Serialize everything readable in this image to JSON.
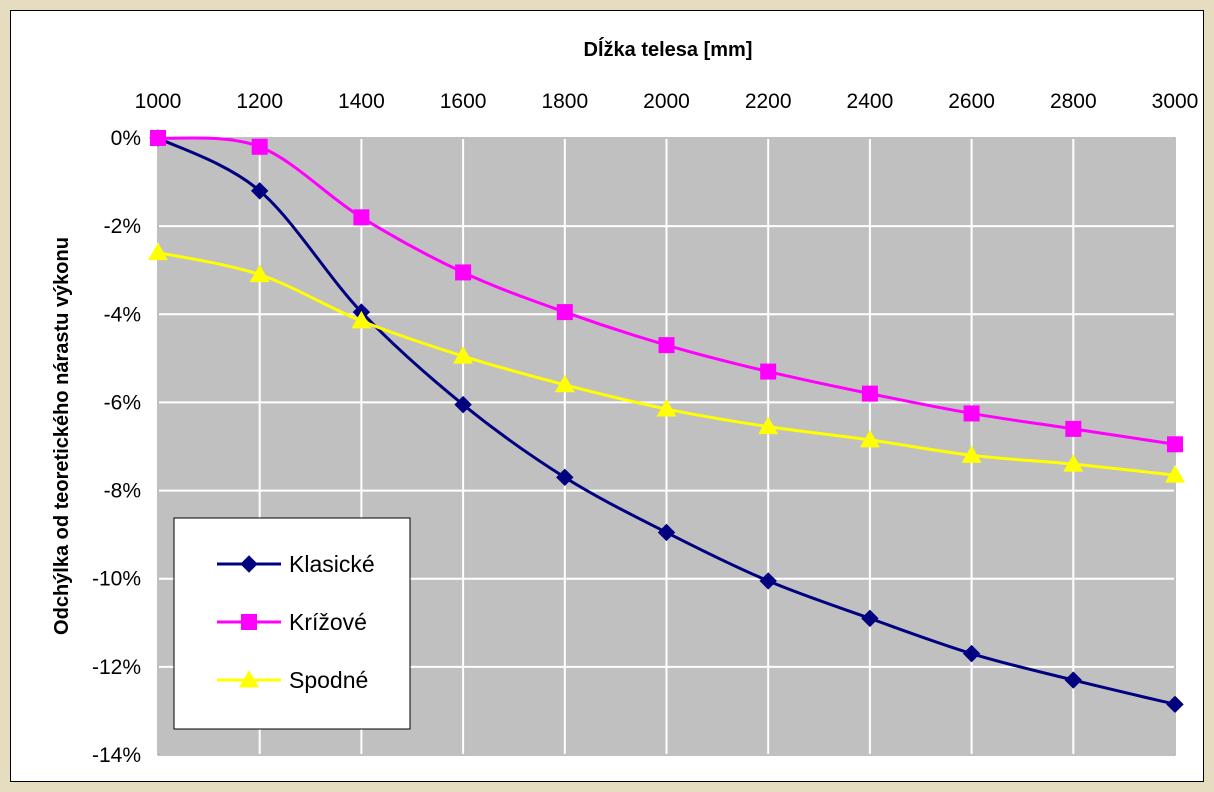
{
  "chart_data": {
    "type": "line",
    "title": "",
    "xlabel": "Dĺžka telesa [mm]",
    "ylabel": "Odchýlka od teoretického nárastu výkonu",
    "x_axis_position": "top",
    "x": [
      1000,
      1200,
      1400,
      1600,
      1800,
      2000,
      2200,
      2400,
      2600,
      2800,
      3000
    ],
    "xlim": [
      1000,
      3000
    ],
    "ylim": [
      -0.14,
      0
    ],
    "y_ticks": [
      0,
      -0.02,
      -0.04,
      -0.06,
      -0.08,
      -0.1,
      -0.12,
      -0.14
    ],
    "y_tick_labels": [
      "0%",
      "-2%",
      "-4%",
      "-6%",
      "-8%",
      "-10%",
      "-12%",
      "-14%"
    ],
    "x_tick_labels": [
      "1000",
      "1200",
      "1400",
      "1600",
      "1800",
      "2000",
      "2200",
      "2400",
      "2600",
      "2800",
      "3000"
    ],
    "grid": true,
    "plot_background": "#c0c0c0",
    "legend_position": "bottom-left",
    "series": [
      {
        "name": "Klasické",
        "color": "#000080",
        "marker": "diamond",
        "values": [
          0,
          -0.012,
          -0.0395,
          -0.0605,
          -0.077,
          -0.0895,
          -0.1005,
          -0.109,
          -0.117,
          -0.123,
          -0.1285
        ]
      },
      {
        "name": "Krížové",
        "color": "#ff00ff",
        "marker": "square",
        "values": [
          0,
          -0.002,
          -0.018,
          -0.0305,
          -0.0395,
          -0.047,
          -0.053,
          -0.058,
          -0.0625,
          -0.066,
          -0.0695
        ]
      },
      {
        "name": "Spodné",
        "color": "#ffff00",
        "marker": "triangle",
        "values": [
          -0.026,
          -0.031,
          -0.0415,
          -0.0495,
          -0.056,
          -0.0615,
          -0.0655,
          -0.0685,
          -0.072,
          -0.074,
          -0.0765
        ]
      }
    ]
  }
}
